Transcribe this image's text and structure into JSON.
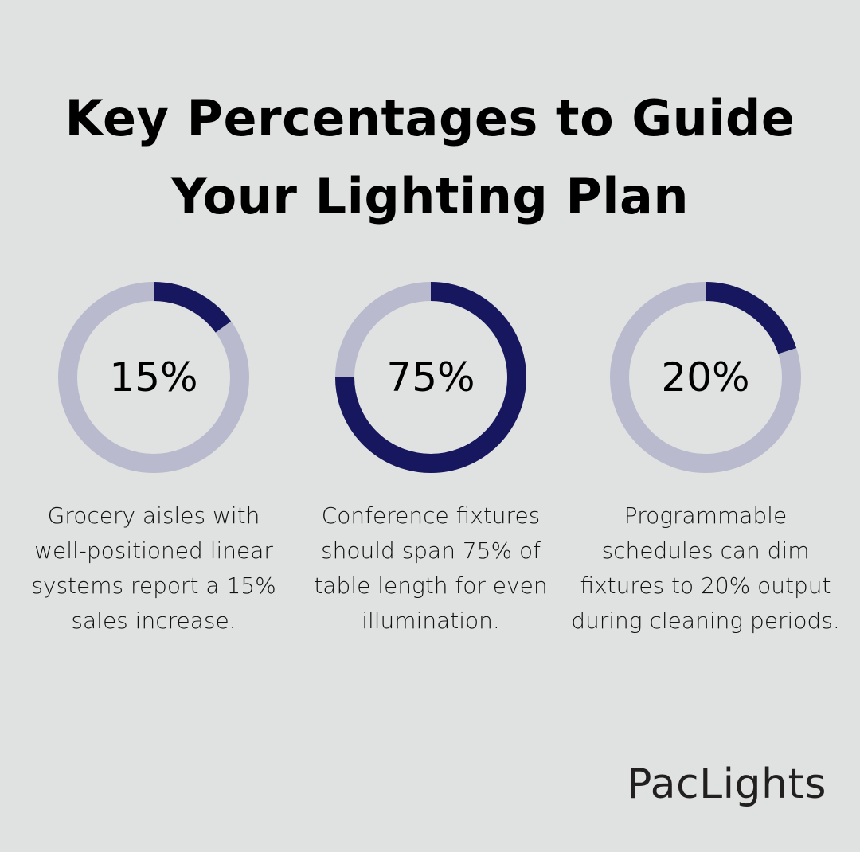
{
  "title_lines": [
    "Key Percentages to Guide",
    "Your Lighting Plan"
  ],
  "colors": {
    "background": "#e0e2e1",
    "track": "#b9bace",
    "fill": "#16175e"
  },
  "chart_data": {
    "type": "pie",
    "subtype": "donut",
    "title": "Key Percentages to Guide Your Lighting Plan",
    "series": [
      {
        "label": "15%",
        "value": 15,
        "description": "Grocery aisles with well-positioned linear systems report a 15% sales increase."
      },
      {
        "label": "75%",
        "value": 75,
        "description": "Conference fixtures should span 75% of table length for even illumination."
      },
      {
        "label": "20%",
        "value": 20,
        "description": "Programmable schedules can dim fixtures to 20% output during cleaning periods."
      }
    ]
  },
  "logo": "PacLights"
}
